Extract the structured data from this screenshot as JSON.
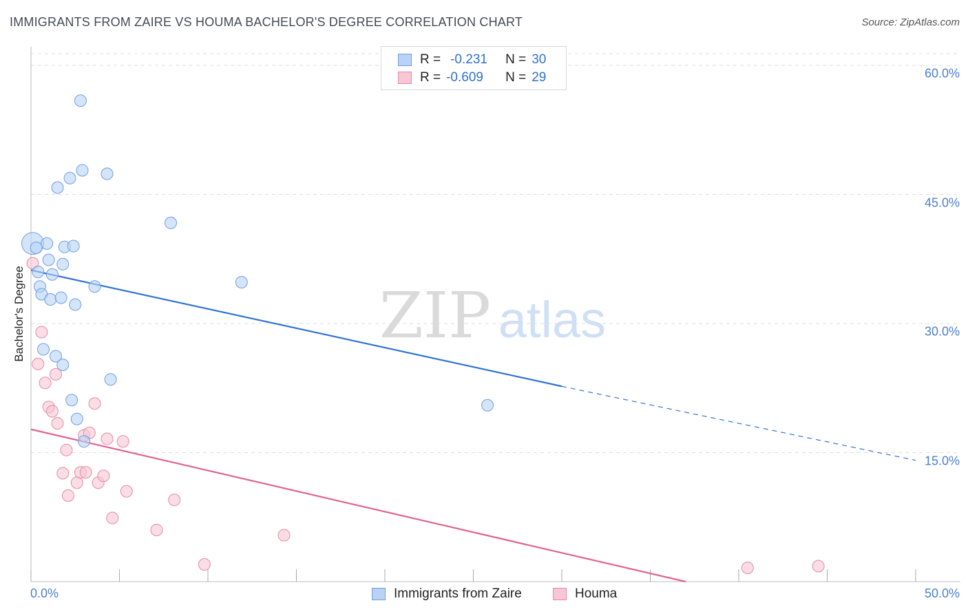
{
  "title": "IMMIGRANTS FROM ZAIRE VS HOUMA BACHELOR'S DEGREE CORRELATION CHART",
  "source": "Source: ZipAtlas.com",
  "watermark": {
    "zip": "ZIP",
    "atlas": "atlas"
  },
  "stats": [
    {
      "r_label": "R =",
      "r_value": "-0.231",
      "n_label": "N =",
      "n_value": "30"
    },
    {
      "r_label": "R =",
      "r_value": "-0.609",
      "n_label": "N =",
      "n_value": "29"
    }
  ],
  "legend": {
    "series1": "Immigrants from Zaire",
    "series2": "Houma"
  },
  "colors": {
    "blue_fill": "#b8d3f5",
    "blue_edge": "#6f9fe0",
    "blue_line": "#2f72d6",
    "pink_fill": "#f9c6d4",
    "pink_edge": "#e58aa6",
    "pink_line": "#e0628e",
    "tick_text": "#4a7fd0",
    "grid": "#dddddd"
  },
  "chart_data": {
    "type": "scatter",
    "title": "IMMIGRANTS FROM ZAIRE VS HOUMA BACHELOR'S DEGREE CORRELATION CHART",
    "xlabel": "",
    "ylabel": "Bachelor's Degree",
    "xlim": [
      0,
      50
    ],
    "ylim": [
      0,
      62
    ],
    "x_tick_labels": [
      "0.0%",
      "50.0%"
    ],
    "y_ticks": [
      15,
      30,
      45,
      60
    ],
    "y_tick_labels": [
      "15.0%",
      "30.0%",
      "45.0%",
      "60.0%"
    ],
    "grid": true,
    "series": [
      {
        "name": "Immigrants from Zaire",
        "r": -0.231,
        "n": 30,
        "points": [
          [
            0.1,
            39.3,
            "large"
          ],
          [
            0.3,
            38.8
          ],
          [
            0.4,
            36.0
          ],
          [
            0.5,
            34.3
          ],
          [
            0.6,
            33.4
          ],
          [
            0.7,
            27.0
          ],
          [
            0.9,
            39.3
          ],
          [
            1.0,
            37.4
          ],
          [
            1.1,
            32.8
          ],
          [
            1.2,
            35.7
          ],
          [
            1.4,
            26.2
          ],
          [
            1.5,
            45.8
          ],
          [
            1.7,
            33.0
          ],
          [
            1.8,
            36.9
          ],
          [
            1.8,
            25.2
          ],
          [
            1.9,
            38.9
          ],
          [
            2.2,
            46.9
          ],
          [
            2.3,
            21.1
          ],
          [
            2.4,
            39.0
          ],
          [
            2.5,
            32.2
          ],
          [
            2.6,
            18.9
          ],
          [
            2.8,
            55.9
          ],
          [
            2.9,
            47.8
          ],
          [
            3.0,
            16.3
          ],
          [
            3.6,
            34.3
          ],
          [
            4.3,
            47.4
          ],
          [
            4.5,
            23.5
          ],
          [
            7.9,
            41.7
          ],
          [
            11.9,
            34.8
          ],
          [
            25.8,
            20.5
          ]
        ],
        "trend": {
          "x_start": 0,
          "y_start": 36.2,
          "x_solid_end": 30,
          "y_solid_end": 22.7,
          "x_dash_end": 50,
          "y_dash_end": 14.1
        }
      },
      {
        "name": "Houma",
        "r": -0.609,
        "n": 29,
        "points": [
          [
            0.1,
            37.0
          ],
          [
            0.4,
            25.3
          ],
          [
            0.6,
            29.0
          ],
          [
            0.8,
            23.1
          ],
          [
            1.0,
            20.3
          ],
          [
            1.2,
            19.8
          ],
          [
            1.4,
            24.1
          ],
          [
            1.5,
            18.4
          ],
          [
            1.8,
            12.6
          ],
          [
            2.0,
            15.3
          ],
          [
            2.1,
            10.0
          ],
          [
            2.6,
            11.5
          ],
          [
            2.8,
            12.7
          ],
          [
            3.0,
            17.0
          ],
          [
            3.1,
            12.7
          ],
          [
            3.3,
            17.3
          ],
          [
            3.6,
            20.7
          ],
          [
            3.8,
            11.5
          ],
          [
            4.1,
            12.3
          ],
          [
            4.3,
            16.6
          ],
          [
            4.6,
            7.4
          ],
          [
            5.2,
            16.3
          ],
          [
            5.4,
            10.5
          ],
          [
            7.1,
            6.0
          ],
          [
            8.1,
            9.5
          ],
          [
            9.8,
            2.0
          ],
          [
            14.3,
            5.4
          ],
          [
            40.5,
            1.6
          ],
          [
            44.5,
            1.8
          ]
        ],
        "trend": {
          "x_start": 0,
          "y_start": 17.7,
          "x_end": 37,
          "y_end": 0
        }
      }
    ]
  }
}
